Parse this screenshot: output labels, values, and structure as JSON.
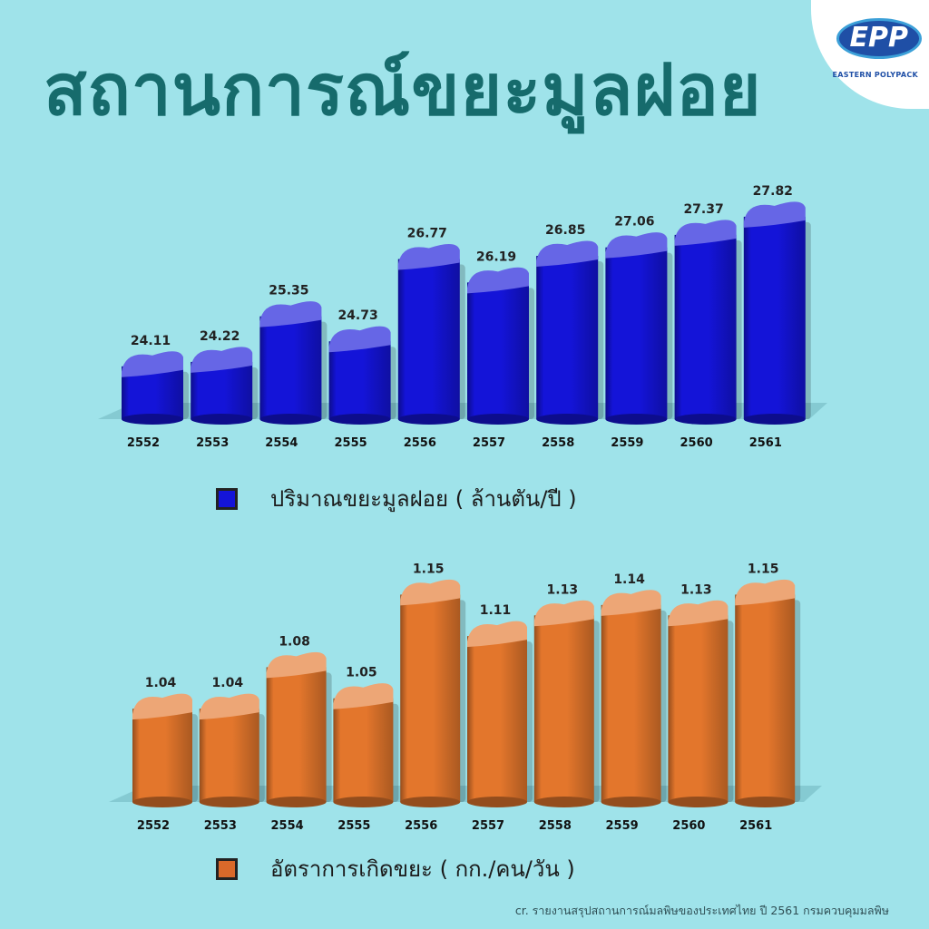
{
  "title": "สถานการณ์ขยะมูลฝอย",
  "logo": {
    "mark": "EPP",
    "text": "EASTERN POLYPACK"
  },
  "chart_data": [
    {
      "type": "bar",
      "categories": [
        "2552",
        "2553",
        "2554",
        "2555",
        "2556",
        "2557",
        "2558",
        "2559",
        "2560",
        "2561"
      ],
      "series": [
        {
          "name": "ปริมาณขยะมูลฝอย ( ล้านตัน/ปี )",
          "values": [
            24.11,
            24.22,
            25.35,
            24.73,
            26.77,
            26.19,
            26.85,
            27.06,
            27.37,
            27.82
          ],
          "labels": [
            "24.11",
            "24.22",
            "25.35",
            "24.73",
            "26.77",
            "26.19",
            "26.85",
            "27.06",
            "27.37",
            "27.82"
          ]
        }
      ],
      "xlabel": "",
      "ylabel": "",
      "ylim": [
        22.8,
        28.2
      ],
      "grid": false,
      "legend": "bottom",
      "color": "#1414d8"
    },
    {
      "type": "bar",
      "categories": [
        "2552",
        "2553",
        "2554",
        "2555",
        "2556",
        "2557",
        "2558",
        "2559",
        "2560",
        "2561"
      ],
      "series": [
        {
          "name": "อัตราการเกิดขยะ ( กก./คน/วัน )",
          "values": [
            1.04,
            1.04,
            1.08,
            1.05,
            1.15,
            1.11,
            1.13,
            1.14,
            1.13,
            1.15
          ],
          "labels": [
            "1.04",
            "1.04",
            "1.08",
            "1.05",
            "1.15",
            "1.11",
            "1.13",
            "1.14",
            "1.13",
            "1.15"
          ]
        }
      ],
      "xlabel": "",
      "ylabel": "",
      "ylim": [
        0.95,
        1.16
      ],
      "grid": false,
      "legend": "bottom",
      "color": "#e3762c"
    }
  ],
  "footer": "cr. รายงานสรุปสถานการณ์มลพิษของประเทศไทย ปี 2561 กรมควบคุมมลพิษ"
}
